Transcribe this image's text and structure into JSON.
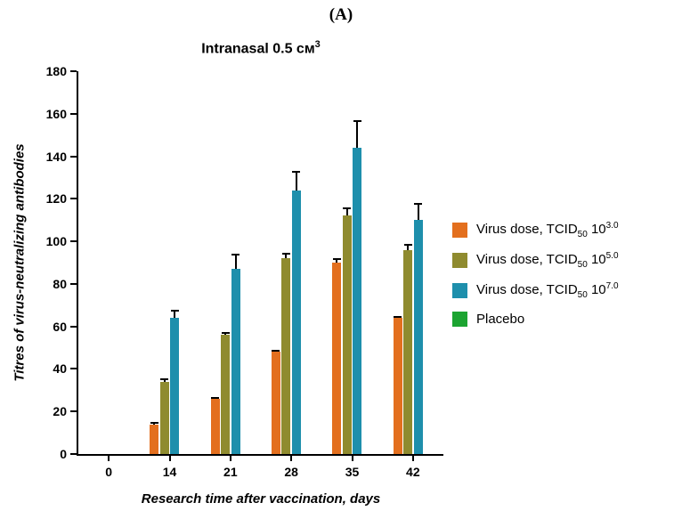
{
  "panel_label": "(A)",
  "chart_data": {
    "type": "bar",
    "title": {
      "text": "Intranasal 0.5 см",
      "sup": "3"
    },
    "xlabel": "Research time after vaccination, days",
    "ylabel": "Titres of virus-neutralizing antibodies",
    "categories": [
      "0",
      "14",
      "21",
      "28",
      "35",
      "42"
    ],
    "series": [
      {
        "name": "Virus dose, TCID50 10^3.0",
        "color": "#E36F1E",
        "values": [
          0,
          14,
          26,
          48,
          90,
          64
        ],
        "errors": [
          0,
          1,
          1,
          1,
          2,
          1
        ]
      },
      {
        "name": "Virus dose, TCID50 10^5.0",
        "color": "#8F8B2F",
        "values": [
          0,
          34,
          56,
          92,
          112,
          96
        ],
        "errors": [
          0,
          1.5,
          1.5,
          2.5,
          4,
          3
        ]
      },
      {
        "name": "Virus dose, TCID50 10^7.0",
        "color": "#1E8FAC",
        "values": [
          0,
          64,
          87,
          124,
          144,
          110
        ],
        "errors": [
          0,
          4,
          7,
          9,
          13,
          8
        ]
      },
      {
        "name": "Placebo",
        "color": "#1CA431",
        "values": [
          0,
          0,
          0,
          0,
          0,
          0
        ],
        "errors": [
          0,
          0,
          0,
          0,
          0,
          0
        ]
      }
    ],
    "ylim": [
      0,
      180
    ],
    "ytick_step": 20,
    "grid": false,
    "legend_position": "right"
  },
  "legend": {
    "items": [
      {
        "prefix": "Virus dose, TCID",
        "sub": "50",
        "mid": " 10",
        "sup": "3.0",
        "color": "#E36F1E"
      },
      {
        "prefix": "Virus dose, TCID",
        "sub": "50",
        "mid": " 10",
        "sup": "5.0",
        "color": "#8F8B2F"
      },
      {
        "prefix": "Virus dose, TCID",
        "sub": "50",
        "mid": " 10",
        "sup": "7.0",
        "color": "#1E8FAC"
      },
      {
        "prefix": "Placebo",
        "sub": "",
        "mid": "",
        "sup": "",
        "color": "#1CA431"
      }
    ]
  }
}
